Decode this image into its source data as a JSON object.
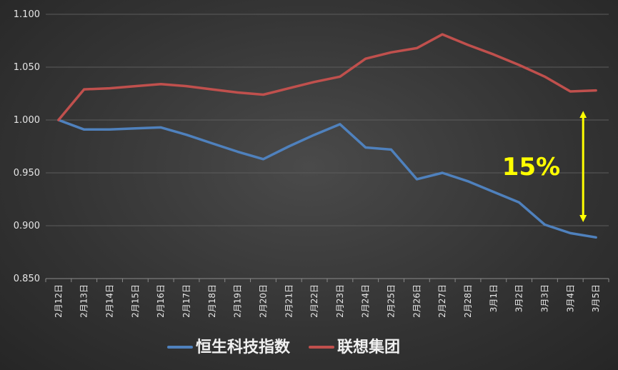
{
  "chart_data": {
    "type": "line",
    "title": "",
    "xlabel": "",
    "ylabel": "",
    "ylim": [
      0.85,
      1.1
    ],
    "yticks": [
      "0.850",
      "0.900",
      "0.950",
      "1.000",
      "1.050",
      "1.100"
    ],
    "ytick_values": [
      0.85,
      0.9,
      0.95,
      1.0,
      1.05,
      1.1
    ],
    "categories": [
      "2月12日",
      "2月13日",
      "2月14日",
      "2月15日",
      "2月16日",
      "2月17日",
      "2月18日",
      "2月19日",
      "2月20日",
      "2月21日",
      "2月22日",
      "2月23日",
      "2月24日",
      "2月25日",
      "2月26日",
      "2月27日",
      "2月28日",
      "3月1日",
      "3月2日",
      "3月3日",
      "3月4日",
      "3月5日"
    ],
    "grid": true,
    "legend_position": "bottom",
    "series": [
      {
        "name": "恒生科技指数",
        "color": "#4f81bd",
        "values": [
          1.0,
          0.991,
          0.991,
          0.992,
          0.993,
          0.986,
          0.978,
          0.97,
          0.963,
          0.975,
          0.986,
          0.996,
          0.974,
          0.972,
          0.944,
          0.95,
          0.942,
          0.932,
          0.922,
          0.901,
          0.893,
          0.889
        ]
      },
      {
        "name": "联想集团",
        "color": "#c0504d",
        "values": [
          1.0,
          1.029,
          1.03,
          1.032,
          1.034,
          1.032,
          1.029,
          1.026,
          1.024,
          1.03,
          1.036,
          1.041,
          1.058,
          1.064,
          1.068,
          1.081,
          1.071,
          1.062,
          1.052,
          1.041,
          1.027,
          1.028
        ]
      }
    ],
    "annotation": {
      "text": "15%",
      "color": "#ffff00",
      "from_value": 1.012,
      "to_value": 0.9,
      "category_index": 20.5
    }
  }
}
